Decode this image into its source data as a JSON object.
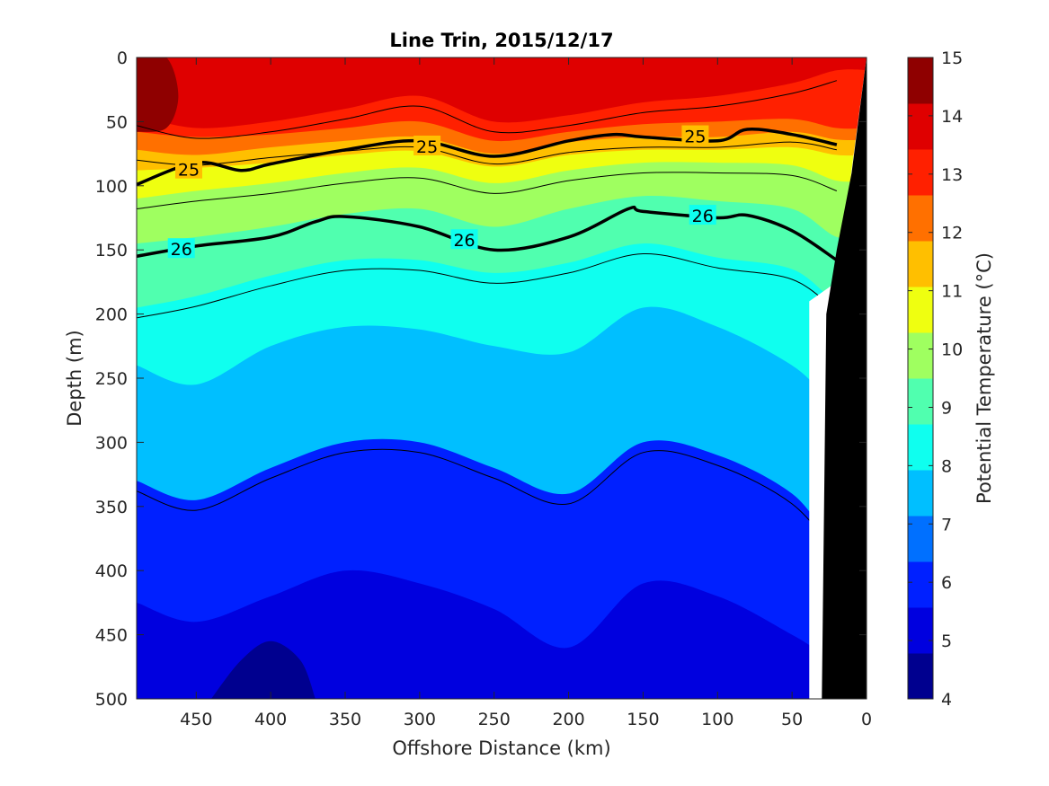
{
  "chart_data": {
    "type": "heatmap",
    "title": "Line Trin, 2015/12/17",
    "xlabel": "Offshore Distance (km)",
    "ylabel": "Depth (m)",
    "xlim": [
      490,
      0
    ],
    "ylim": [
      500,
      0
    ],
    "x_reversed": true,
    "y_reversed": true,
    "x_ticks": [
      450,
      400,
      350,
      300,
      250,
      200,
      150,
      100,
      50,
      0
    ],
    "y_ticks": [
      0,
      50,
      100,
      150,
      200,
      250,
      300,
      350,
      400,
      450,
      500
    ],
    "colorbar": {
      "label": "Potential Temperature (°C)",
      "min": 4,
      "max": 15,
      "ticks": [
        4,
        5,
        6,
        7,
        8,
        9,
        10,
        11,
        12,
        13,
        14,
        15
      ],
      "colors": [
        "#00008f",
        "#0000df",
        "#0020ff",
        "#0070ff",
        "#00bfff",
        "#0fffef",
        "#50ffaf",
        "#9fff60",
        "#efff10",
        "#ffbf00",
        "#ff7000",
        "#ff2000",
        "#df0000",
        "#8f0000"
      ]
    },
    "isotherm_depths_m": {
      "distance_km": [
        490,
        450,
        400,
        350,
        300,
        250,
        200,
        150,
        100,
        50,
        20
      ],
      "t14": [
        45,
        55,
        50,
        40,
        30,
        50,
        45,
        35,
        30,
        20,
        10
      ],
      "t13": [
        58,
        62,
        60,
        55,
        50,
        65,
        58,
        52,
        50,
        48,
        55
      ],
      "t12": [
        72,
        76,
        70,
        65,
        62,
        75,
        66,
        62,
        62,
        58,
        64
      ],
      "t11": [
        88,
        86,
        82,
        76,
        73,
        85,
        76,
        72,
        72,
        70,
        76
      ],
      "t10": [
        110,
        104,
        98,
        90,
        86,
        98,
        88,
        82,
        82,
        84,
        96
      ],
      "t9": [
        145,
        140,
        132,
        122,
        118,
        132,
        118,
        108,
        112,
        118,
        140
      ],
      "t8": [
        195,
        186,
        170,
        158,
        158,
        168,
        160,
        145,
        156,
        165,
        190
      ],
      "t7": [
        240,
        255,
        225,
        210,
        212,
        225,
        230,
        195,
        210,
        240,
        270
      ],
      "t6": [
        330,
        345,
        320,
        300,
        300,
        320,
        340,
        300,
        310,
        340,
        380
      ],
      "t5": [
        425,
        440,
        420,
        400,
        410,
        430,
        460,
        410,
        420,
        450,
        470
      ]
    },
    "sigma_theta_contours": [
      {
        "label": "25",
        "distance_km": [
          490,
          450,
          420,
          400,
          350,
          300,
          250,
          200,
          170,
          150,
          100,
          80,
          50,
          20
        ],
        "depth_m": [
          99,
          82,
          88,
          83,
          72,
          65,
          77,
          65,
          60,
          62,
          65,
          56,
          60,
          68
        ]
      },
      {
        "label": "26",
        "distance_km": [
          490,
          450,
          400,
          370,
          350,
          300,
          250,
          200,
          160,
          150,
          100,
          80,
          50,
          20
        ],
        "depth_m": [
          155,
          147,
          140,
          128,
          124,
          132,
          150,
          140,
          118,
          120,
          125,
          123,
          135,
          158
        ]
      }
    ],
    "seafloor_mask": {
      "distance_km": [
        30,
        27,
        20,
        10,
        0
      ],
      "depth_m": [
        500,
        200,
        150,
        90,
        0
      ]
    }
  }
}
